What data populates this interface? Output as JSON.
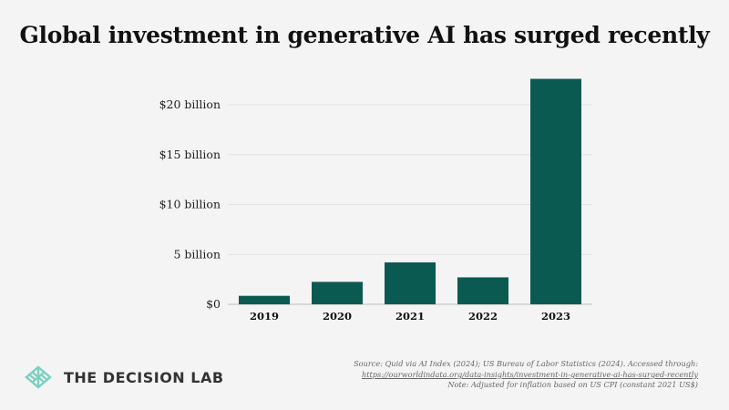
{
  "title": "Global investment in generative AI has surged recently",
  "brand": {
    "name": "THE DECISION LAB",
    "logo_icon": "decision-lab-leaf-logo",
    "color": "#7dd0c0"
  },
  "source": {
    "line1": "Source: Quid via AI Index (2024); US Bureau of Labor Statistics (2024). Accessed through:",
    "link": "https://ourworldindata.org/data-insights/investment-in-generative-ai-has-surged-recently",
    "note": "Note: Adjusted for inflation based on US CPI (constant 2021 US$)"
  },
  "chart_data": {
    "type": "bar",
    "title": "Global investment in generative AI has surged recently",
    "categories": [
      "2019",
      "2020",
      "2021",
      "2022",
      "2023"
    ],
    "values": [
      0.85,
      2.25,
      4.2,
      2.7,
      22.6
    ],
    "unit": "billion USD",
    "ylim": [
      0,
      23
    ],
    "yticks": [
      {
        "value": 0,
        "label": "$0"
      },
      {
        "value": 5,
        "label": "5 billion"
      },
      {
        "value": 10,
        "label": "$10 billion"
      },
      {
        "value": 15,
        "label": "$15 billion"
      },
      {
        "value": 20,
        "label": "$20 billion"
      }
    ],
    "bar_color": "#0b5a52",
    "grid": true
  }
}
